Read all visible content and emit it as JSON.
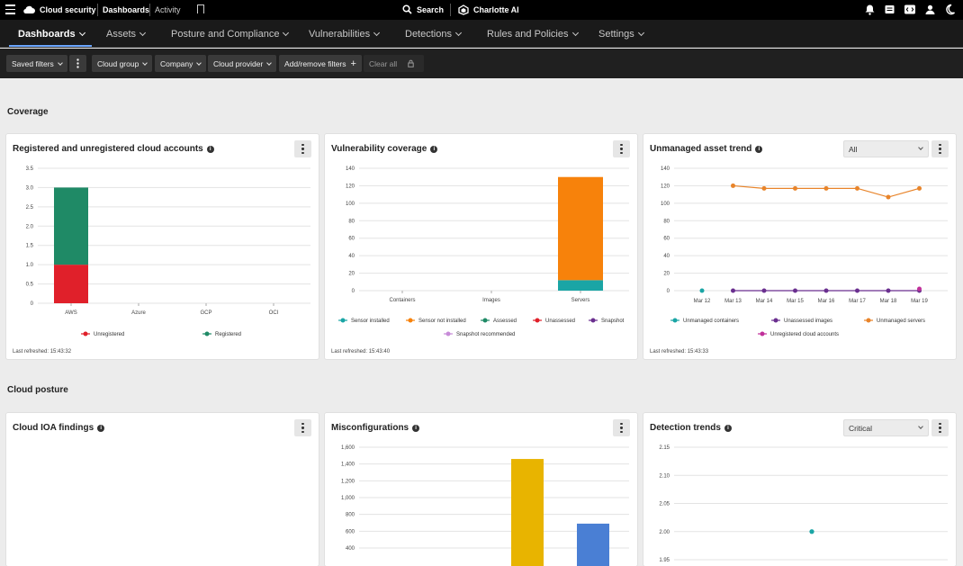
{
  "topbar": {
    "app_title": "Cloud security",
    "dashboards": "Dashboards",
    "activity": "Activity",
    "search": "Search",
    "assistant": "Charlotte AI"
  },
  "nav": {
    "items": [
      {
        "label": "Dashboards",
        "active": true
      },
      {
        "label": "Assets"
      },
      {
        "label": "Posture and Compliance"
      },
      {
        "label": "Vulnerabilities"
      },
      {
        "label": "Detections"
      },
      {
        "label": "Rules and Policies"
      },
      {
        "label": "Settings"
      }
    ]
  },
  "filters": {
    "saved": "Saved filters",
    "cloud_group": "Cloud group",
    "company": "Company",
    "cloud_provider": "Cloud provider",
    "add_remove": "Add/remove filters",
    "clear_all": "Clear all"
  },
  "sections": {
    "coverage": "Coverage",
    "posture": "Cloud posture"
  },
  "cards": {
    "accounts": {
      "title": "Registered and unregistered cloud accounts",
      "refreshed": "Last refreshed: 15:43:32"
    },
    "vuln": {
      "title": "Vulnerability coverage",
      "refreshed": "Last refreshed: 15:43:40"
    },
    "unmanaged": {
      "title": "Unmanaged asset trend",
      "refreshed": "Last refreshed: 15:43:33",
      "filter": "All"
    },
    "ioa": {
      "title": "Cloud IOA findings"
    },
    "misconfig": {
      "title": "Misconfigurations"
    },
    "detection": {
      "title": "Detection trends",
      "filter": "Critical"
    }
  },
  "chart_data": [
    {
      "id": "accounts",
      "type": "bar",
      "stacked": true,
      "categories": [
        "AWS",
        "Azure",
        "GCP",
        "OCI"
      ],
      "series": [
        {
          "name": "Unregistered",
          "color": "#e0202a",
          "values": [
            1,
            0,
            0,
            0
          ]
        },
        {
          "name": "Registered",
          "color": "#1f8a66",
          "values": [
            2,
            0,
            0,
            0
          ]
        }
      ],
      "ylim": [
        0,
        3.5
      ],
      "yticks": [
        "0",
        "0.5",
        "1.0",
        "1.5",
        "2.0",
        "2.5",
        "3.0",
        "3.5"
      ]
    },
    {
      "id": "vuln",
      "type": "bar",
      "stacked": true,
      "categories": [
        "Containers",
        "Images",
        "Servers"
      ],
      "series": [
        {
          "name": "Sensor installed",
          "color": "#1aa5a5",
          "values": [
            0,
            0,
            12
          ]
        },
        {
          "name": "Sensor not installed",
          "color": "#f7820b",
          "values": [
            0,
            0,
            118
          ]
        },
        {
          "name": "Assessed",
          "color": "#1f8a66",
          "values": [
            0,
            0,
            0
          ]
        },
        {
          "name": "Unassessed",
          "color": "#e0202a",
          "values": [
            0,
            0,
            0
          ]
        },
        {
          "name": "Snapshot",
          "color": "#6a2f8f",
          "values": [
            0,
            0,
            0
          ]
        },
        {
          "name": "Snapshot recommended",
          "color": "#c78bd8",
          "values": [
            0,
            0,
            0
          ]
        }
      ],
      "ylim": [
        0,
        140
      ],
      "yticks": [
        "0",
        "20",
        "40",
        "60",
        "80",
        "100",
        "120",
        "140"
      ]
    },
    {
      "id": "unmanaged",
      "type": "line",
      "x": [
        "Mar 12",
        "Mar 13",
        "Mar 14",
        "Mar 15",
        "Mar 16",
        "Mar 17",
        "Mar 18",
        "Mar 19"
      ],
      "series": [
        {
          "name": "Unmanaged containers",
          "color": "#1aa5a5",
          "values": [
            0,
            null,
            null,
            null,
            null,
            null,
            null,
            null
          ]
        },
        {
          "name": "Unassessed images",
          "color": "#6a2f8f",
          "values": [
            null,
            0,
            0,
            0,
            0,
            0,
            0,
            0
          ]
        },
        {
          "name": "Unmanaged servers",
          "color": "#e8842a",
          "values": [
            null,
            120,
            117,
            117,
            117,
            117,
            107,
            117
          ]
        },
        {
          "name": "Unregistered cloud accounts",
          "color": "#c0309a",
          "values": [
            null,
            null,
            null,
            null,
            null,
            null,
            null,
            2
          ]
        }
      ],
      "ylim": [
        0,
        140
      ],
      "yticks": [
        "0",
        "20",
        "40",
        "60",
        "80",
        "100",
        "120",
        "140"
      ]
    },
    {
      "id": "misconfig",
      "type": "bar",
      "categories": [
        "",
        ""
      ],
      "series": [
        {
          "name": "",
          "color": "#e8b400",
          "values": [
            1460,
            null
          ]
        },
        {
          "name": "",
          "color": "#4a7fd4",
          "values": [
            null,
            690
          ]
        }
      ],
      "ylim": [
        400,
        1600
      ],
      "yticks": [
        "400",
        "600",
        "800",
        "1,000",
        "1,200",
        "1,400",
        "1,600"
      ]
    },
    {
      "id": "detection",
      "type": "scatter",
      "points": [
        {
          "x": 0,
          "y": 2.0
        }
      ],
      "color": "#1aa5a5",
      "ylim": [
        1.95,
        2.15
      ],
      "yticks": [
        "1.95",
        "2.00",
        "2.05",
        "2.10",
        "2.15"
      ]
    }
  ]
}
